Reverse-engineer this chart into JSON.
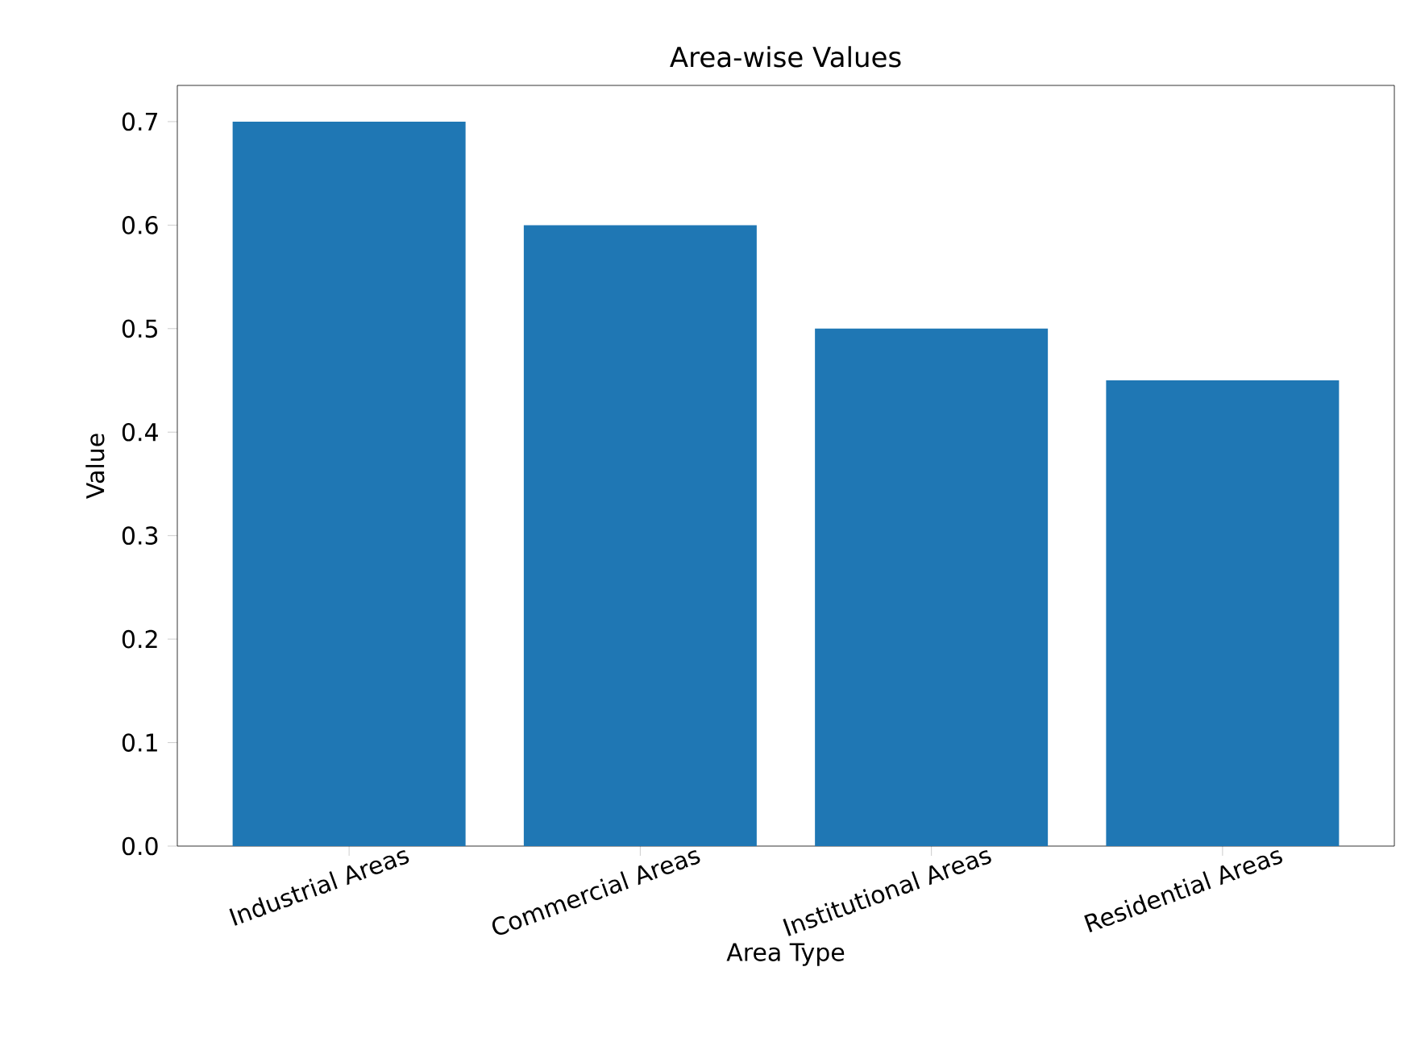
{
  "chart_data": {
    "type": "bar",
    "title": "Area-wise Values",
    "xlabel": "Area Type",
    "ylabel": "Value",
    "categories": [
      "Industrial Areas",
      "Commercial Areas",
      "Institutional Areas",
      "Residential Areas"
    ],
    "values": [
      0.7,
      0.6,
      0.5,
      0.45
    ],
    "color": "#1f77b4",
    "ylim": [
      0,
      0.735
    ],
    "yticks": [
      {
        "value": 0,
        "label": "0.0"
      },
      0.1,
      0.2,
      0.3,
      0.4,
      0.5,
      0.6,
      0.7
    ],
    "grid": false
  }
}
